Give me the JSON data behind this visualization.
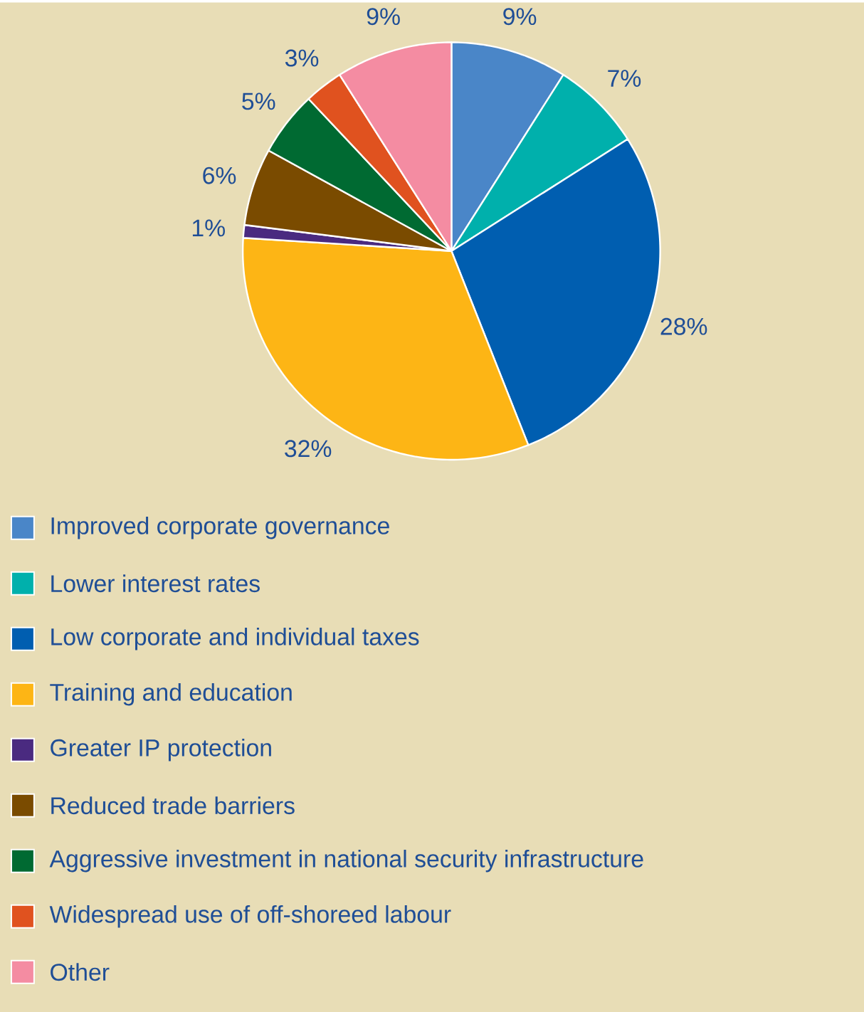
{
  "chart_data": {
    "type": "pie",
    "categories": [
      "Improved corporate governance",
      "Lower interest rates",
      "Low corporate and individual taxes",
      "Training and education",
      "Greater IP protection",
      "Reduced trade barriers",
      "Aggressive investment in national security infrastructure",
      "Widespread use of off-shoreed labour",
      "Other"
    ],
    "values": [
      9,
      7,
      28,
      32,
      1,
      6,
      5,
      3,
      9
    ],
    "value_labels": [
      "9%",
      "7%",
      "28%",
      "32%",
      "1%",
      "6%",
      "5%",
      "3%",
      "9%"
    ],
    "colors": [
      "#4a86c8",
      "#00b0ac",
      "#005eb0",
      "#fdb515",
      "#4a2a80",
      "#7a4b00",
      "#006a32",
      "#e0521f",
      "#f48ca2"
    ],
    "legend": "bottom"
  }
}
